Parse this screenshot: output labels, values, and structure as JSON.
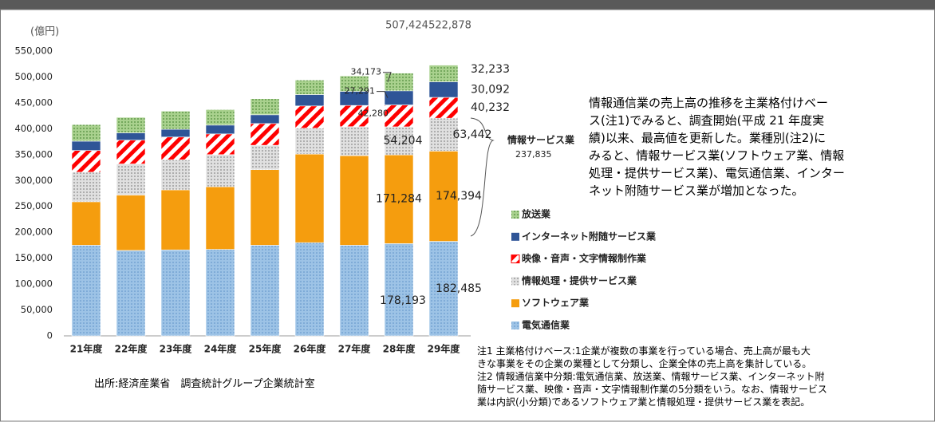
{
  "chart_data": {
    "type": "stacked_bar",
    "y_unit": "(億円)",
    "categories": [
      "21年度",
      "22年度",
      "23年度",
      "24年度",
      "25年度",
      "26年度",
      "27年度",
      "28年度",
      "29年度"
    ],
    "series": [
      {
        "name": "電気通信業",
        "color": "#9dc3e6",
        "values": [
          175000,
          165000,
          166000,
          167000,
          175000,
          180000,
          175000,
          178193,
          182485
        ],
        "value_labels": [
          null,
          null,
          null,
          null,
          null,
          null,
          null,
          "178,193",
          "182,485"
        ]
      },
      {
        "name": "ソフトウェア業",
        "color": "#f59d0e",
        "values": [
          84000,
          107000,
          116000,
          121000,
          146000,
          171000,
          173000,
          171284,
          174394
        ],
        "value_labels": [
          null,
          null,
          null,
          null,
          null,
          null,
          null,
          "171,284",
          "174,394"
        ]
      },
      {
        "name": "情報処理・提供サービス業",
        "color": "#c8c8c8",
        "values": [
          57000,
          60000,
          58000,
          62000,
          47000,
          50000,
          56000,
          54204,
          63442
        ],
        "value_labels": [
          null,
          null,
          null,
          null,
          null,
          null,
          null,
          "54,204",
          "63,442"
        ]
      },
      {
        "name": "映像・音声・文字情報制作業",
        "color": "#ff0000",
        "values": [
          42000,
          46000,
          44000,
          40000,
          42000,
          43000,
          41000,
          42280,
          40232
        ],
        "value_labels": [
          null,
          null,
          null,
          null,
          null,
          null,
          null,
          "42,280",
          "40,232"
        ]
      },
      {
        "name": "インターネット附随サービス業",
        "color": "#2f5597",
        "values": [
          18000,
          14000,
          15000,
          17000,
          17000,
          22000,
          27000,
          27291,
          30092
        ],
        "value_labels": [
          null,
          null,
          null,
          null,
          null,
          null,
          null,
          "27,291",
          "30,092"
        ]
      },
      {
        "name": "放送業",
        "color": "#a9d18e",
        "values": [
          32000,
          30000,
          35000,
          30000,
          31000,
          28000,
          30000,
          34173,
          32233
        ],
        "value_labels": [
          null,
          null,
          null,
          null,
          null,
          null,
          null,
          "34,173",
          "32,233"
        ]
      }
    ],
    "totals": [
      null,
      null,
      null,
      null,
      null,
      null,
      null,
      507424,
      522878
    ],
    "total_labels": [
      null,
      null,
      null,
      null,
      null,
      null,
      null,
      "507,424",
      "522,878"
    ],
    "group_note": {
      "label": "情報サービス業",
      "value": 237835,
      "value_label": "237,835"
    },
    "ylim": [
      0,
      550000
    ],
    "yticks": [
      0,
      {
        "value": 50000,
        "label": "50,000"
      },
      {
        "value": 100000,
        "label": "100,000"
      },
      {
        "value": 150000,
        "label": "150,000"
      },
      {
        "value": 200000,
        "label": "200,000"
      },
      {
        "value": 250000,
        "label": "250,000"
      },
      {
        "value": 300000,
        "label": "300,000"
      },
      {
        "value": 350000,
        "label": "350,000"
      },
      {
        "value": 400000,
        "label": "400,000"
      },
      {
        "value": 450000,
        "label": "450,000"
      },
      {
        "value": 500000,
        "label": "500,000"
      },
      {
        "value": 550000,
        "label": "550,000"
      }
    ],
    "grid": false,
    "legend": "right",
    "source": "出所:経済産業省　調査統計グループ企業統計室",
    "paragraph": [
      "情報通信業の売上高の推移を主業格付けベー",
      "ス(注1)でみると、調査開始(平成 21 年度実",
      "績)以来、最高値を更新した。業種別(注2)に",
      "みると、情報サービス業(ソフトウェア業、情報",
      "処理・提供サービス業)、電気通信業、インター",
      "ネット附随サービス業が増加となった。"
    ],
    "notes": [
      "注1 主業格付けベース:1企業が複数の事業を行っている場合、売上高が最も大",
      "きな事業をその企業の業種として分類し、企業全体の売上高を集計している。",
      "注2 情報通信業中分類:電気通信業、放送業、情報サービス業、インターネット附",
      "随サービス業、映像・音声・文字情報制作業の5分類をいう。なお、情報サービス",
      "業は内訳(小分類)であるソフトウェア業と情報処理・提供サービス業を表記。"
    ]
  }
}
